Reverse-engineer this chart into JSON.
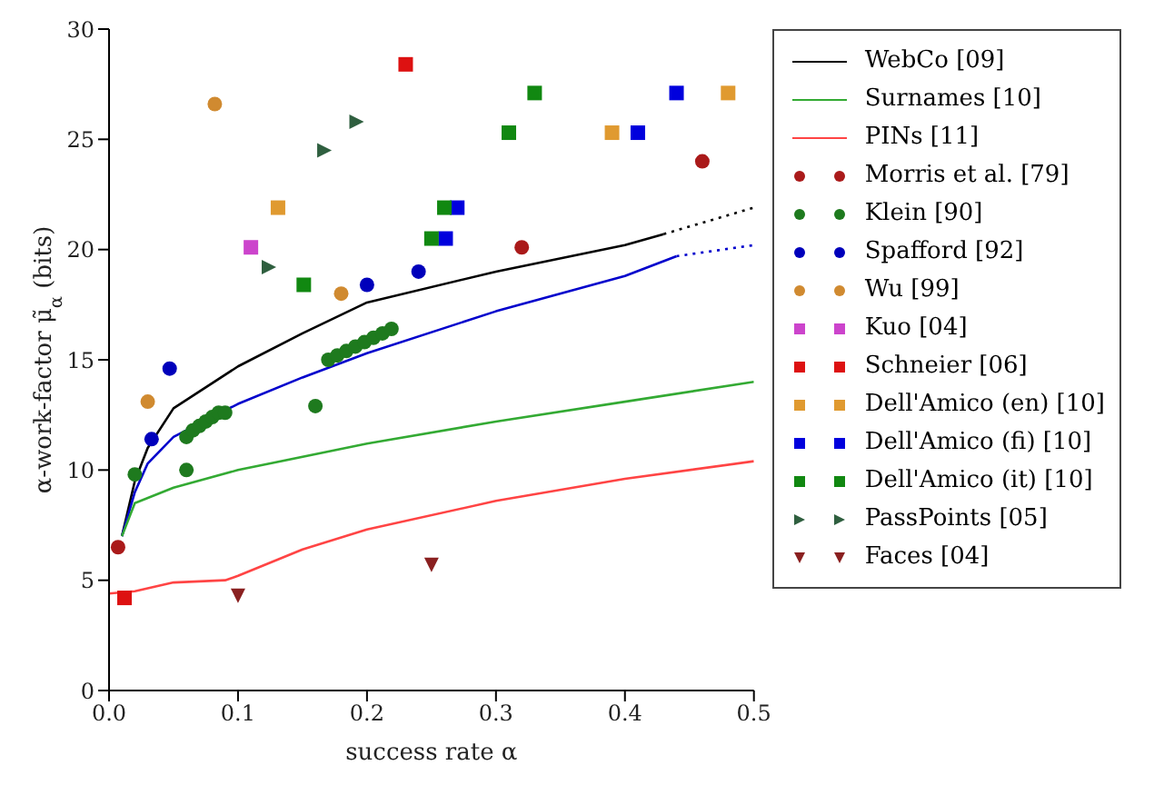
{
  "chart_data": {
    "type": "line",
    "xlabel": "success rate α",
    "ylabel": "α-work-factor μ̃$_{α}$ (bits)",
    "xlim": [
      0,
      0.5
    ],
    "ylim": [
      0,
      30
    ],
    "xticks": [
      {
        "value": 0,
        "label": "0.0"
      },
      {
        "value": 0.1,
        "label": "0.1"
      },
      {
        "value": 0.2,
        "label": "0.2"
      },
      {
        "value": 0.3,
        "label": "0.3"
      },
      {
        "value": 0.4,
        "label": "0.4"
      },
      {
        "value": 0.5,
        "label": "0.5"
      }
    ],
    "yticks": [
      0,
      5,
      10,
      15,
      20,
      25,
      30
    ],
    "grid": false,
    "legend": "right",
    "marker": "none",
    "series": [
      {
        "name": "WebCo [09]",
        "type": "line",
        "color": "#000000",
        "line_style": "solid",
        "x": [
          0.01,
          0.02,
          0.03,
          0.05,
          0.1,
          0.15,
          0.2,
          0.3,
          0.4,
          0.43
        ],
        "values": [
          7.0,
          9.5,
          11.0,
          12.8,
          14.7,
          16.2,
          17.6,
          19.0,
          20.2,
          20.7
        ]
      },
      {
        "type": "line",
        "color": "#000000",
        "line_style": "dotted",
        "x": [
          0.43,
          0.5
        ],
        "values": [
          20.7,
          21.9
        ]
      },
      {
        "type": "line",
        "color": "#0000cc",
        "line_style": "solid",
        "x": [
          0.01,
          0.02,
          0.03,
          0.05,
          0.1,
          0.15,
          0.2,
          0.3,
          0.4,
          0.44
        ],
        "values": [
          7.0,
          9.0,
          10.3,
          11.5,
          13.0,
          14.2,
          15.3,
          17.2,
          18.8,
          19.7
        ]
      },
      {
        "type": "line",
        "color": "#0000cc",
        "line_style": "dotted",
        "x": [
          0.44,
          0.5
        ],
        "values": [
          19.7,
          20.2
        ]
      },
      {
        "name": "Surnames [10]",
        "type": "line",
        "color": "#33aa33",
        "line_style": "solid",
        "x": [
          0.01,
          0.02,
          0.05,
          0.1,
          0.2,
          0.3,
          0.4,
          0.5
        ],
        "values": [
          7.0,
          8.5,
          9.2,
          10.0,
          11.2,
          12.2,
          13.1,
          14.0
        ]
      },
      {
        "name": "PINs [11]",
        "type": "line",
        "color": "#ff4444",
        "line_style": "solid",
        "x": [
          0.0,
          0.02,
          0.05,
          0.09,
          0.1,
          0.15,
          0.2,
          0.3,
          0.4,
          0.5
        ],
        "values": [
          4.4,
          4.5,
          4.9,
          5.0,
          5.2,
          6.4,
          7.3,
          8.6,
          9.6,
          10.4
        ]
      },
      {
        "name": "Morris et al. [79]",
        "type": "scatter",
        "marker": "circle",
        "color": "#aa1a1a",
        "x": [
          0.007,
          0.32,
          0.46
        ],
        "values": [
          6.5,
          20.1,
          24.0
        ]
      },
      {
        "name": "Klein [90]",
        "type": "scatter",
        "marker": "circle",
        "color": "#1e7a1e",
        "x": [
          0.02,
          0.06,
          0.06,
          0.065,
          0.07,
          0.075,
          0.08,
          0.085,
          0.09,
          0.16,
          0.17,
          0.177,
          0.184,
          0.191,
          0.198,
          0.205,
          0.212,
          0.219
        ],
        "values": [
          9.8,
          10.0,
          11.5,
          11.8,
          12.0,
          12.2,
          12.4,
          12.6,
          12.6,
          12.9,
          15.0,
          15.2,
          15.4,
          15.6,
          15.8,
          16.0,
          16.2,
          16.4
        ]
      },
      {
        "name": "Spafford [92]",
        "type": "scatter",
        "marker": "circle",
        "color": "#0000bb",
        "x": [
          0.033,
          0.047,
          0.2,
          0.24
        ],
        "values": [
          11.4,
          14.6,
          18.4,
          19.0
        ]
      },
      {
        "name": "Wu [99]",
        "type": "scatter",
        "marker": "circle",
        "color": "#d08a30",
        "x": [
          0.03,
          0.082,
          0.18
        ],
        "values": [
          13.1,
          26.6,
          18.0
        ]
      },
      {
        "name": "Kuo [04]",
        "type": "scatter",
        "marker": "square",
        "color": "#cc44cc",
        "x": [
          0.11
        ],
        "values": [
          20.1
        ]
      },
      {
        "name": "Schneier [06]",
        "type": "scatter",
        "marker": "square",
        "color": "#dd1111",
        "x": [
          0.012,
          0.23
        ],
        "values": [
          4.2,
          28.4
        ]
      },
      {
        "name": "Dell'Amico (en) [10]",
        "type": "scatter",
        "marker": "square",
        "color": "#e09a30",
        "x": [
          0.131,
          0.39,
          0.48
        ],
        "values": [
          21.9,
          25.3,
          27.1
        ]
      },
      {
        "name": "Dell'Amico (fi) [10]",
        "type": "scatter",
        "marker": "square",
        "color": "#0000dd",
        "x": [
          0.261,
          0.27,
          0.41,
          0.44
        ],
        "values": [
          20.5,
          21.9,
          25.3,
          27.1
        ]
      },
      {
        "name": "Dell'Amico (it) [10]",
        "type": "scatter",
        "marker": "square",
        "color": "#118811",
        "x": [
          0.151,
          0.25,
          0.26,
          0.31,
          0.33
        ],
        "values": [
          18.4,
          20.5,
          21.9,
          25.3,
          27.1
        ]
      },
      {
        "name": "PassPoints [05]",
        "type": "scatter",
        "marker": "triangle",
        "color": "#2f5f3f",
        "x": [
          0.124,
          0.167,
          0.192
        ],
        "values": [
          19.2,
          24.5,
          25.8
        ]
      },
      {
        "name": "Faces [04]",
        "type": "scatter",
        "marker": "triangle_down",
        "color": "#8a2020",
        "x": [
          0.1,
          0.25
        ],
        "values": [
          4.3,
          5.7
        ]
      }
    ]
  }
}
